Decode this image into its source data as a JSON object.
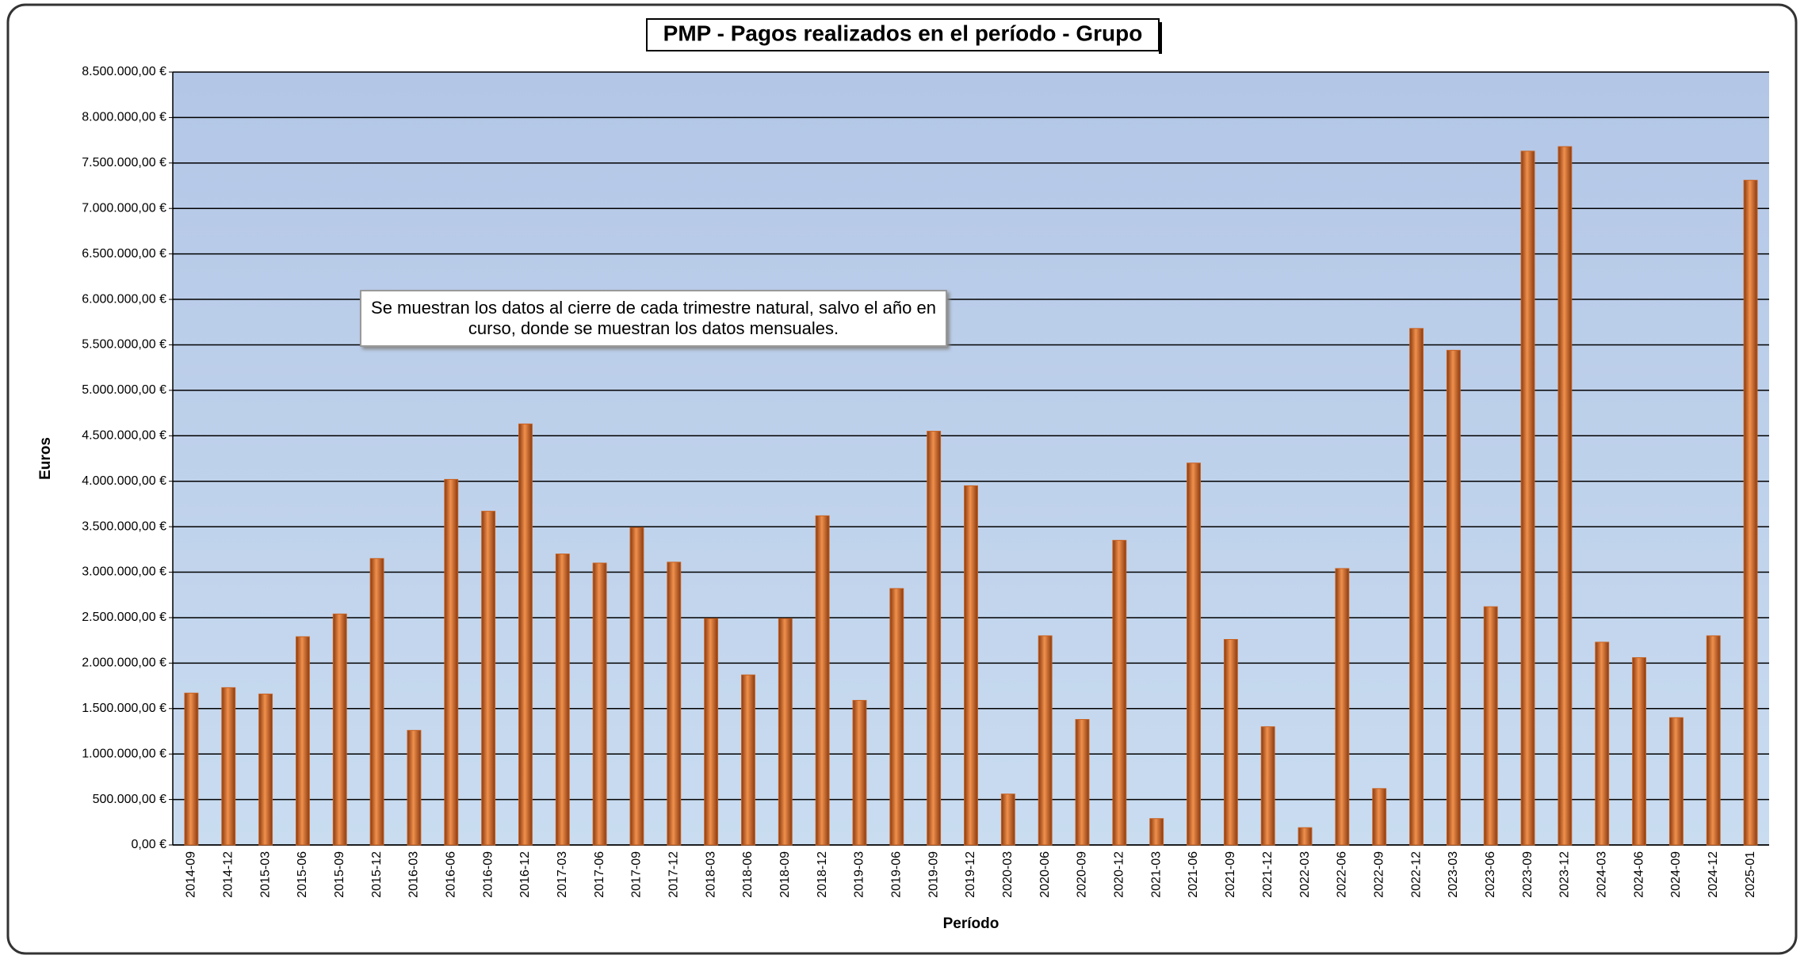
{
  "chart_data": {
    "type": "bar",
    "title": "PMP - Pagos realizados en el período - Grupo",
    "x_label": "Período",
    "y_label": "Euros",
    "annotation": "Se muestran los datos al cierre de cada trimestre natural, salvo el año en curso, donde se muestran los datos mensuales.",
    "categories": [
      "2014-09",
      "2014-12",
      "2015-03",
      "2015-06",
      "2015-09",
      "2015-12",
      "2016-03",
      "2016-06",
      "2016-09",
      "2016-12",
      "2017-03",
      "2017-06",
      "2017-09",
      "2017-12",
      "2018-03",
      "2018-06",
      "2018-09",
      "2018-12",
      "2019-03",
      "2019-06",
      "2019-09",
      "2019-12",
      "2020-03",
      "2020-06",
      "2020-09",
      "2020-12",
      "2021-03",
      "2021-06",
      "2021-09",
      "2021-12",
      "2022-03",
      "2022-06",
      "2022-09",
      "2022-12",
      "2023-03",
      "2023-06",
      "2023-09",
      "2023-12",
      "2024-03",
      "2024-06",
      "2024-09",
      "2024-12",
      "2025-01"
    ],
    "values": [
      1670000,
      1730000,
      1660000,
      2290000,
      2540000,
      3150000,
      1260000,
      4020000,
      3670000,
      4630000,
      3200000,
      3100000,
      3490000,
      3110000,
      2490000,
      1870000,
      2490000,
      3620000,
      1590000,
      2820000,
      4550000,
      3950000,
      560000,
      2300000,
      1380000,
      3350000,
      290000,
      4200000,
      2260000,
      1300000,
      190000,
      3040000,
      620000,
      5680000,
      5440000,
      2620000,
      7630000,
      7680000,
      2230000,
      2060000,
      1400000,
      2300000,
      7310000
    ],
    "color": "#c8601f",
    "ylim": [
      0,
      8500000
    ],
    "yticks": [
      {
        "value": 0,
        "label": "0,00 €"
      },
      {
        "value": 500000,
        "label": "500.000,00 €"
      },
      {
        "value": 1000000,
        "label": "1.000.000,00 €"
      },
      {
        "value": 1500000,
        "label": "1.500.000,00 €"
      },
      {
        "value": 2000000,
        "label": "2.000.000,00 €"
      },
      {
        "value": 2500000,
        "label": "2.500.000,00 €"
      },
      {
        "value": 3000000,
        "label": "3.000.000,00 €"
      },
      {
        "value": 3500000,
        "label": "3.500.000,00 €"
      },
      {
        "value": 4000000,
        "label": "4.000.000,00 €"
      },
      {
        "value": 4500000,
        "label": "4.500.000,00 €"
      },
      {
        "value": 5000000,
        "label": "5.000.000,00 €"
      },
      {
        "value": 5500000,
        "label": "5.500.000,00 €"
      },
      {
        "value": 6000000,
        "label": "6.000.000,00 €"
      },
      {
        "value": 6500000,
        "label": "6.500.000,00 €"
      },
      {
        "value": 7000000,
        "label": "7.000.000,00 €"
      },
      {
        "value": 7500000,
        "label": "7.500.000,00 €"
      },
      {
        "value": 8000000,
        "label": "8.000.000,00 €"
      },
      {
        "value": 8500000,
        "label": "8.500.000,00 €"
      }
    ],
    "grid": true
  }
}
